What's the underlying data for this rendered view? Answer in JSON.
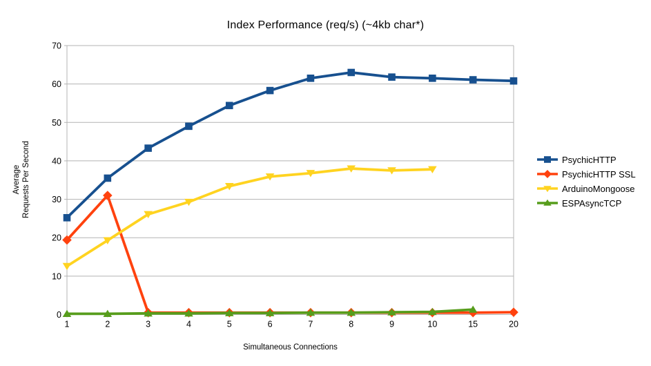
{
  "chart_data": {
    "type": "line",
    "title": "Index Performance (req/s) (~4kb char*)",
    "xlabel": "Simultaneous Connections",
    "ylabel": "Average Requests Per Second",
    "ylabel_lines": [
      "Average",
      "Requests Per Second"
    ],
    "categories": [
      "1",
      "2",
      "3",
      "4",
      "5",
      "6",
      "7",
      "8",
      "9",
      "10",
      "15",
      "20"
    ],
    "ylim": [
      0,
      70
    ],
    "ytick_step": 10,
    "grid": "horizontal",
    "legend_position": "right",
    "series": [
      {
        "name": "PsychicHTTP",
        "color": "#17508F",
        "marker": "square",
        "values": [
          25.2,
          35.5,
          43.3,
          49.0,
          54.4,
          58.3,
          61.5,
          63.0,
          61.8,
          61.5,
          61.1,
          60.8
        ]
      },
      {
        "name": "PsychicHTTP SSL",
        "color": "#FF420E",
        "marker": "diamond",
        "values": [
          19.4,
          31.0,
          0.5,
          0.5,
          0.5,
          0.5,
          0.5,
          0.5,
          0.5,
          0.5,
          0.5,
          0.6
        ]
      },
      {
        "name": "ArduinoMongoose",
        "color": "#FFD320",
        "marker": "triangle-down",
        "values": [
          12.6,
          19.3,
          26.1,
          29.3,
          33.4,
          35.9,
          36.8,
          38.0,
          37.5,
          37.8,
          null,
          null
        ]
      },
      {
        "name": "ESPAsyncTCP",
        "color": "#579D1C",
        "marker": "triangle-up",
        "values": [
          0.2,
          0.2,
          0.3,
          0.3,
          0.4,
          0.4,
          0.5,
          0.5,
          0.6,
          0.7,
          1.3,
          null
        ]
      }
    ]
  },
  "colors": {
    "grid": "#b3b3b3",
    "axis": "#b3b3b3",
    "text": "#000000",
    "background": "#ffffff"
  }
}
